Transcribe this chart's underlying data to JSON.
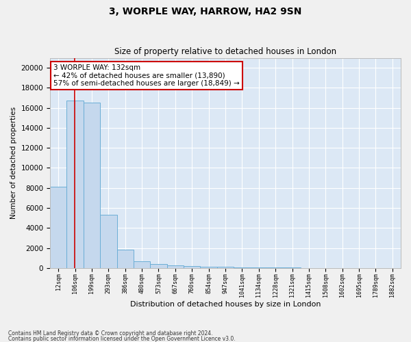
{
  "title": "3, WORPLE WAY, HARROW, HA2 9SN",
  "subtitle": "Size of property relative to detached houses in London",
  "xlabel": "Distribution of detached houses by size in London",
  "ylabel": "Number of detached properties",
  "bar_color": "#c5d8ed",
  "bar_edge_color": "#6baed6",
  "background_color": "#dce8f5",
  "grid_color": "#ffffff",
  "vline_color": "#cc0000",
  "vline_x": 0.97,
  "annotation_text": "3 WORPLE WAY: 132sqm\n← 42% of detached houses are smaller (13,890)\n57% of semi-detached houses are larger (18,849) →",
  "annotation_box_color": "#ffffff",
  "annotation_box_edge_color": "#cc0000",
  "categories": [
    "12sqm",
    "106sqm",
    "199sqm",
    "293sqm",
    "386sqm",
    "480sqm",
    "573sqm",
    "667sqm",
    "760sqm",
    "854sqm",
    "947sqm",
    "1041sqm",
    "1134sqm",
    "1228sqm",
    "1321sqm",
    "1415sqm",
    "1508sqm",
    "1602sqm",
    "1695sqm",
    "1789sqm",
    "1882sqm"
  ],
  "values": [
    8100,
    16700,
    16500,
    5300,
    1850,
    700,
    380,
    260,
    175,
    130,
    95,
    75,
    55,
    42,
    28,
    18,
    12,
    9,
    6,
    4,
    2
  ],
  "ylim": [
    0,
    21000
  ],
  "yticks": [
    0,
    2000,
    4000,
    6000,
    8000,
    10000,
    12000,
    14000,
    16000,
    18000,
    20000
  ],
  "footnote1": "Contains HM Land Registry data © Crown copyright and database right 2024.",
  "footnote2": "Contains public sector information licensed under the Open Government Licence v3.0."
}
